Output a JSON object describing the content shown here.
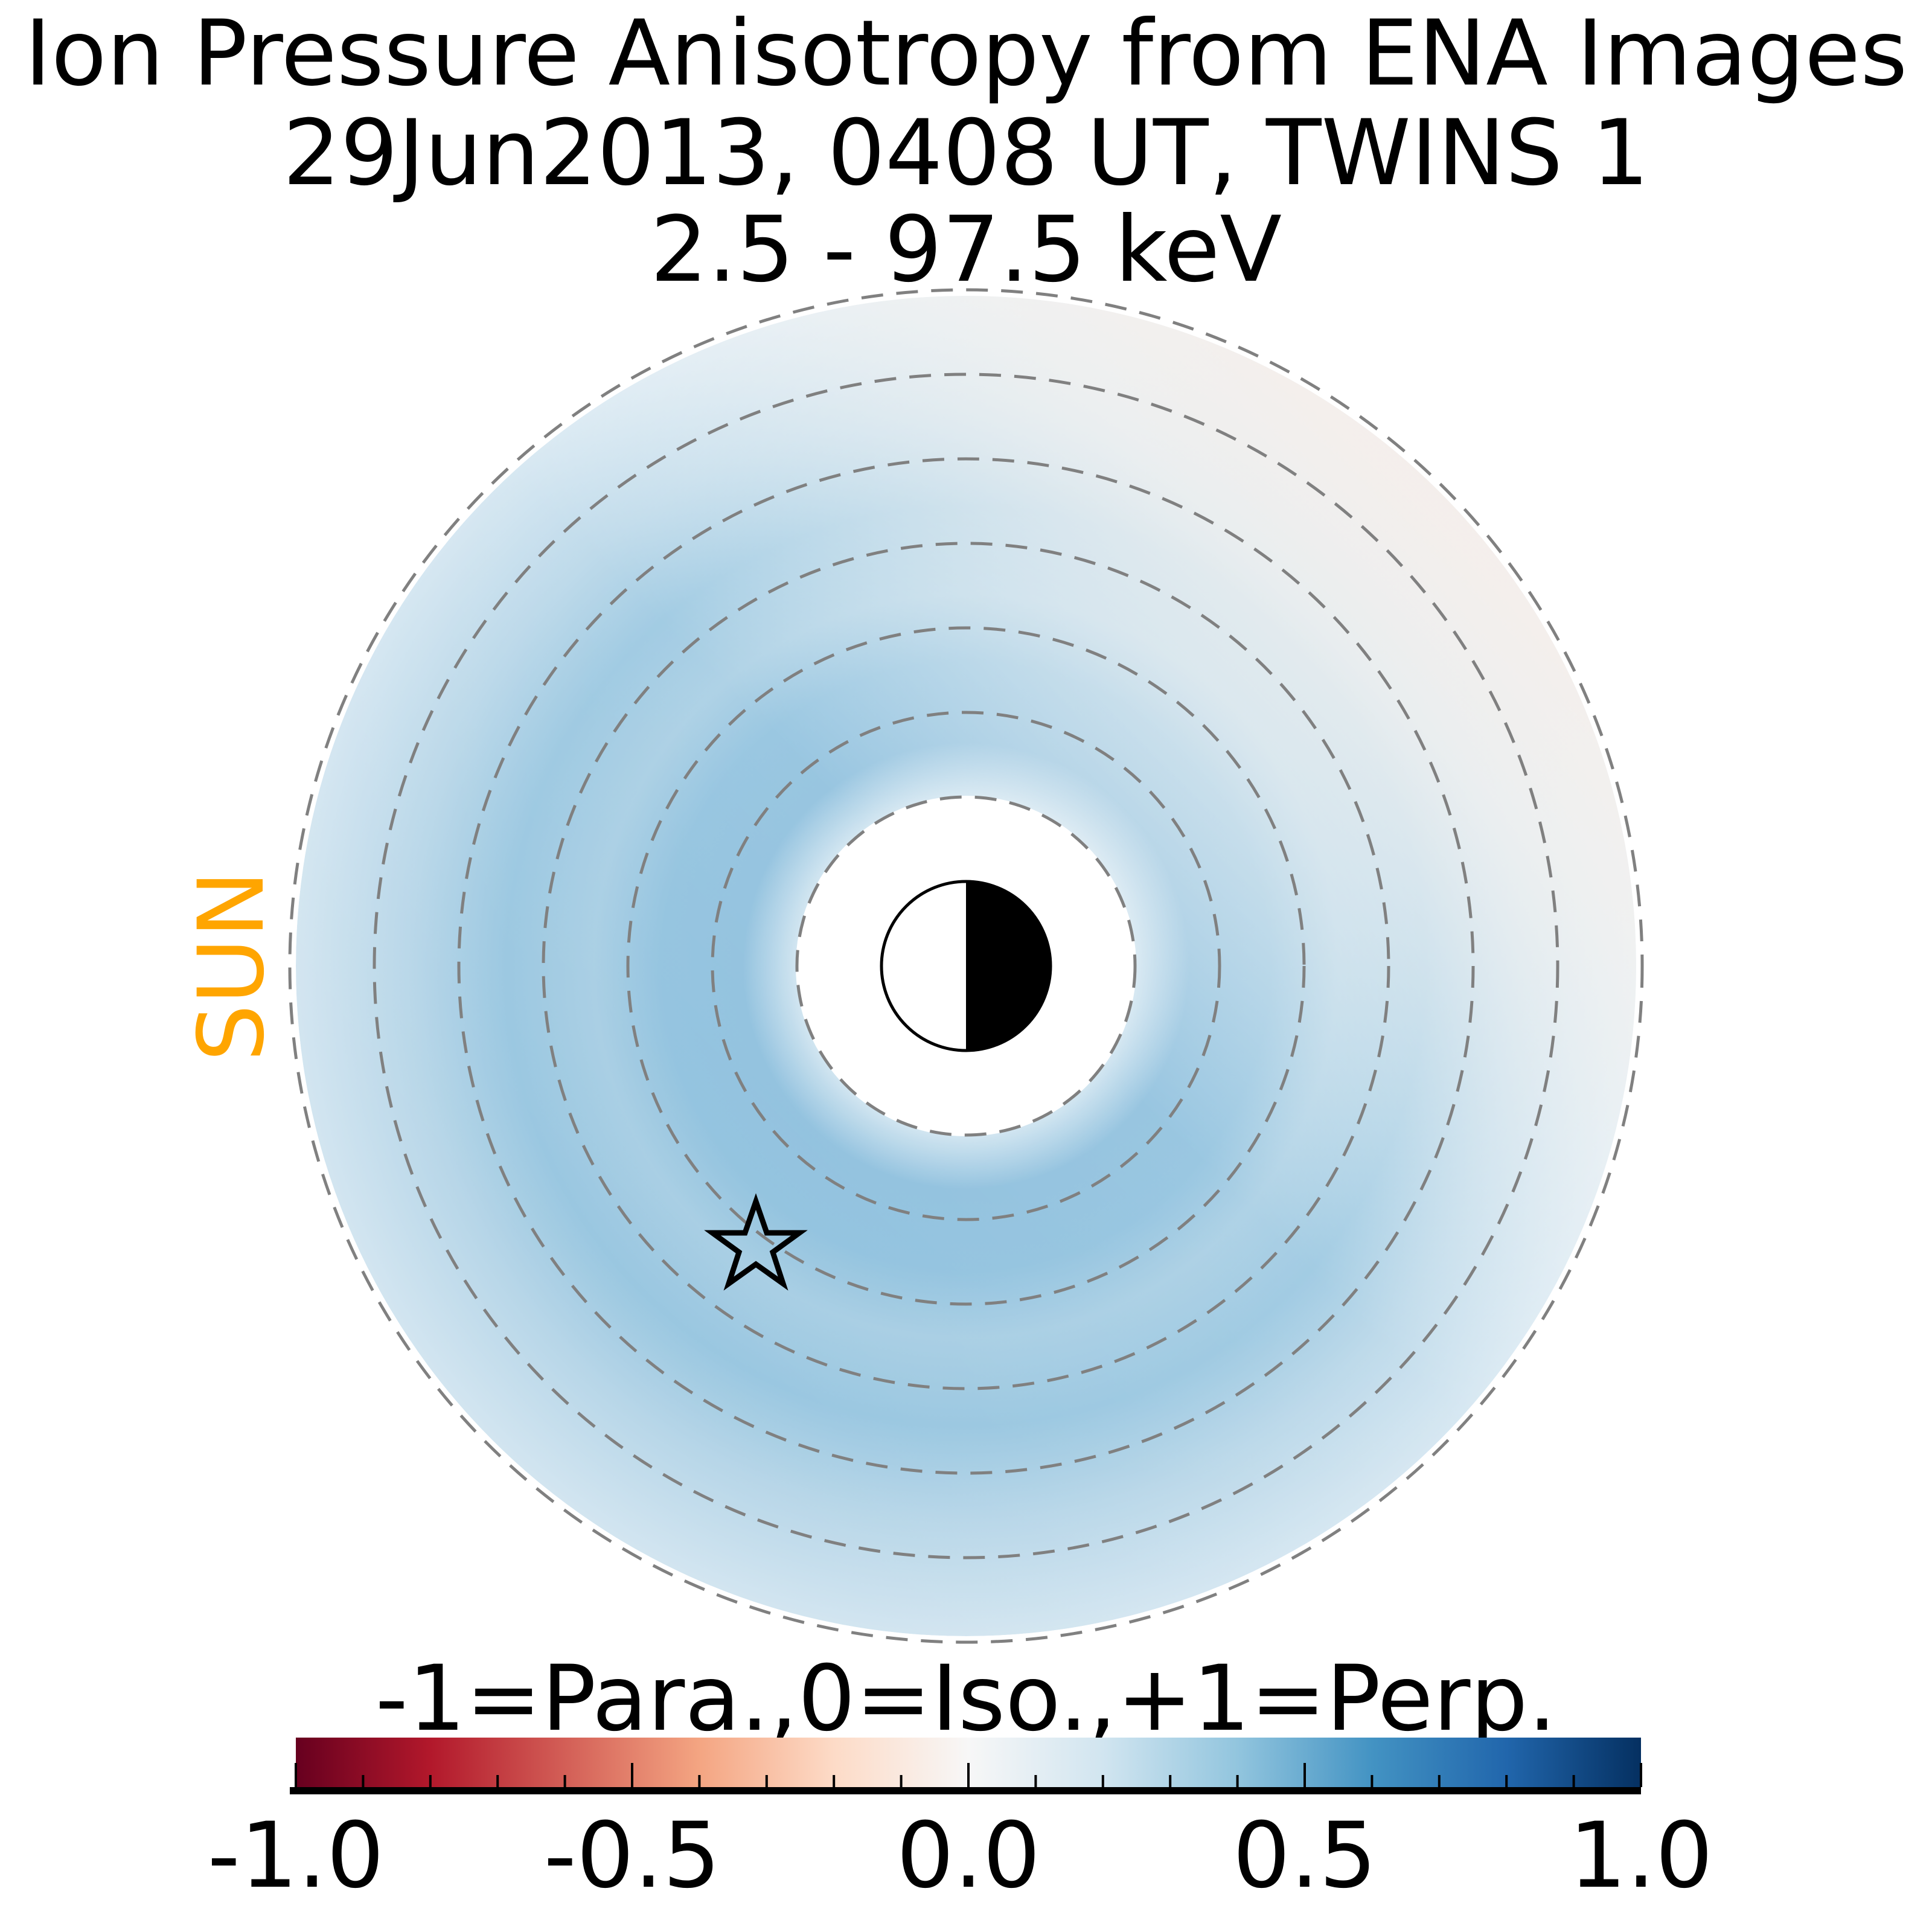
{
  "chart_data": {
    "type": "heatmap",
    "title_lines": [
      "Ion Pressure Anisotropy from  ENA Images",
      "29Jun2013, 0408 UT,  TWINS 1",
      "2.5 - 97.5 keV"
    ],
    "sun_label": "SUN",
    "colorbar": {
      "label": "-1=Para.,0=Iso.,+1=Perp.",
      "range": [
        -1.0,
        1.0
      ],
      "tick_labels": [
        "-1.0",
        "-0.5",
        "0.0",
        "0.5",
        "1.0"
      ],
      "tick_values": [
        -1.0,
        -0.5,
        0.0,
        0.5,
        1.0
      ],
      "minor_step": 0.1,
      "colormap": "RdBu",
      "colors": [
        "#67001f",
        "#b2182b",
        "#f4a582",
        "#f7f7f7",
        "#92c5de",
        "#2166ac",
        "#053061"
      ]
    },
    "grid": {
      "dashed_rings": 7,
      "ring_color": "#808080"
    },
    "field_summary": {
      "typical_value": 0.3,
      "max_value": 0.5,
      "min_value": -0.05,
      "description_dir": "enhanced perpendicular ring, near-isotropic at dusk/upper-right"
    },
    "sun_color": "#FFA500"
  }
}
